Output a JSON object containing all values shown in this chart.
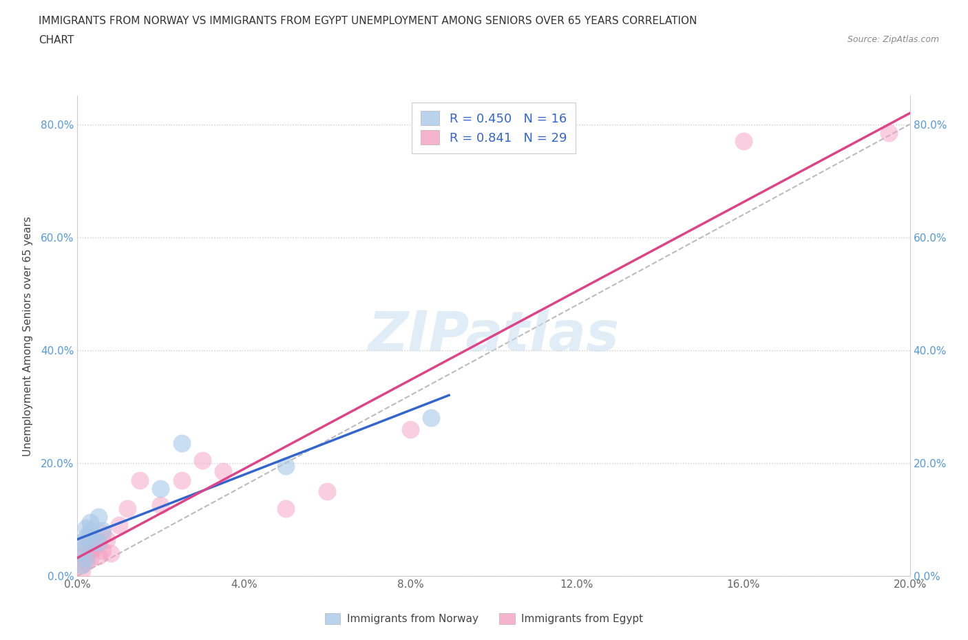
{
  "title_line1": "IMMIGRANTS FROM NORWAY VS IMMIGRANTS FROM EGYPT UNEMPLOYMENT AMONG SENIORS OVER 65 YEARS CORRELATION",
  "title_line2": "CHART",
  "source": "Source: ZipAtlas.com",
  "ylabel": "Unemployment Among Seniors over 65 years",
  "xlim": [
    0.0,
    0.2
  ],
  "ylim": [
    0.0,
    0.85
  ],
  "xticks": [
    0.0,
    0.04,
    0.08,
    0.12,
    0.16,
    0.2
  ],
  "yticks": [
    0.0,
    0.2,
    0.4,
    0.6,
    0.8
  ],
  "norway_R": 0.45,
  "norway_N": 16,
  "egypt_R": 0.841,
  "egypt_N": 29,
  "norway_color": "#a8c8e8",
  "egypt_color": "#f4a0c0",
  "norway_line_color": "#3366cc",
  "egypt_line_color": "#dd4488",
  "ref_line_color": "#bbbbbb",
  "tick_color": "#5599dd",
  "norway_x": [
    0.001,
    0.001,
    0.001,
    0.002,
    0.002,
    0.002,
    0.003,
    0.003,
    0.004,
    0.005,
    0.005,
    0.006,
    0.02,
    0.025,
    0.05,
    0.085
  ],
  "norway_y": [
    0.02,
    0.045,
    0.06,
    0.03,
    0.07,
    0.085,
    0.08,
    0.095,
    0.06,
    0.06,
    0.105,
    0.08,
    0.155,
    0.235,
    0.195,
    0.28
  ],
  "egypt_x": [
    0.001,
    0.001,
    0.001,
    0.002,
    0.002,
    0.002,
    0.003,
    0.003,
    0.003,
    0.004,
    0.004,
    0.005,
    0.005,
    0.006,
    0.006,
    0.007,
    0.008,
    0.01,
    0.012,
    0.015,
    0.02,
    0.025,
    0.03,
    0.035,
    0.05,
    0.06,
    0.08,
    0.16,
    0.195
  ],
  "egypt_y": [
    0.01,
    0.02,
    0.035,
    0.025,
    0.04,
    0.055,
    0.03,
    0.045,
    0.06,
    0.05,
    0.065,
    0.035,
    0.06,
    0.045,
    0.075,
    0.065,
    0.04,
    0.09,
    0.12,
    0.17,
    0.125,
    0.17,
    0.205,
    0.185,
    0.12,
    0.15,
    0.26,
    0.77,
    0.785
  ],
  "background_color": "#ffffff",
  "grid_color": "#cccccc",
  "watermark_text": "ZIPatlas",
  "watermark_color": "#c8ddf0"
}
